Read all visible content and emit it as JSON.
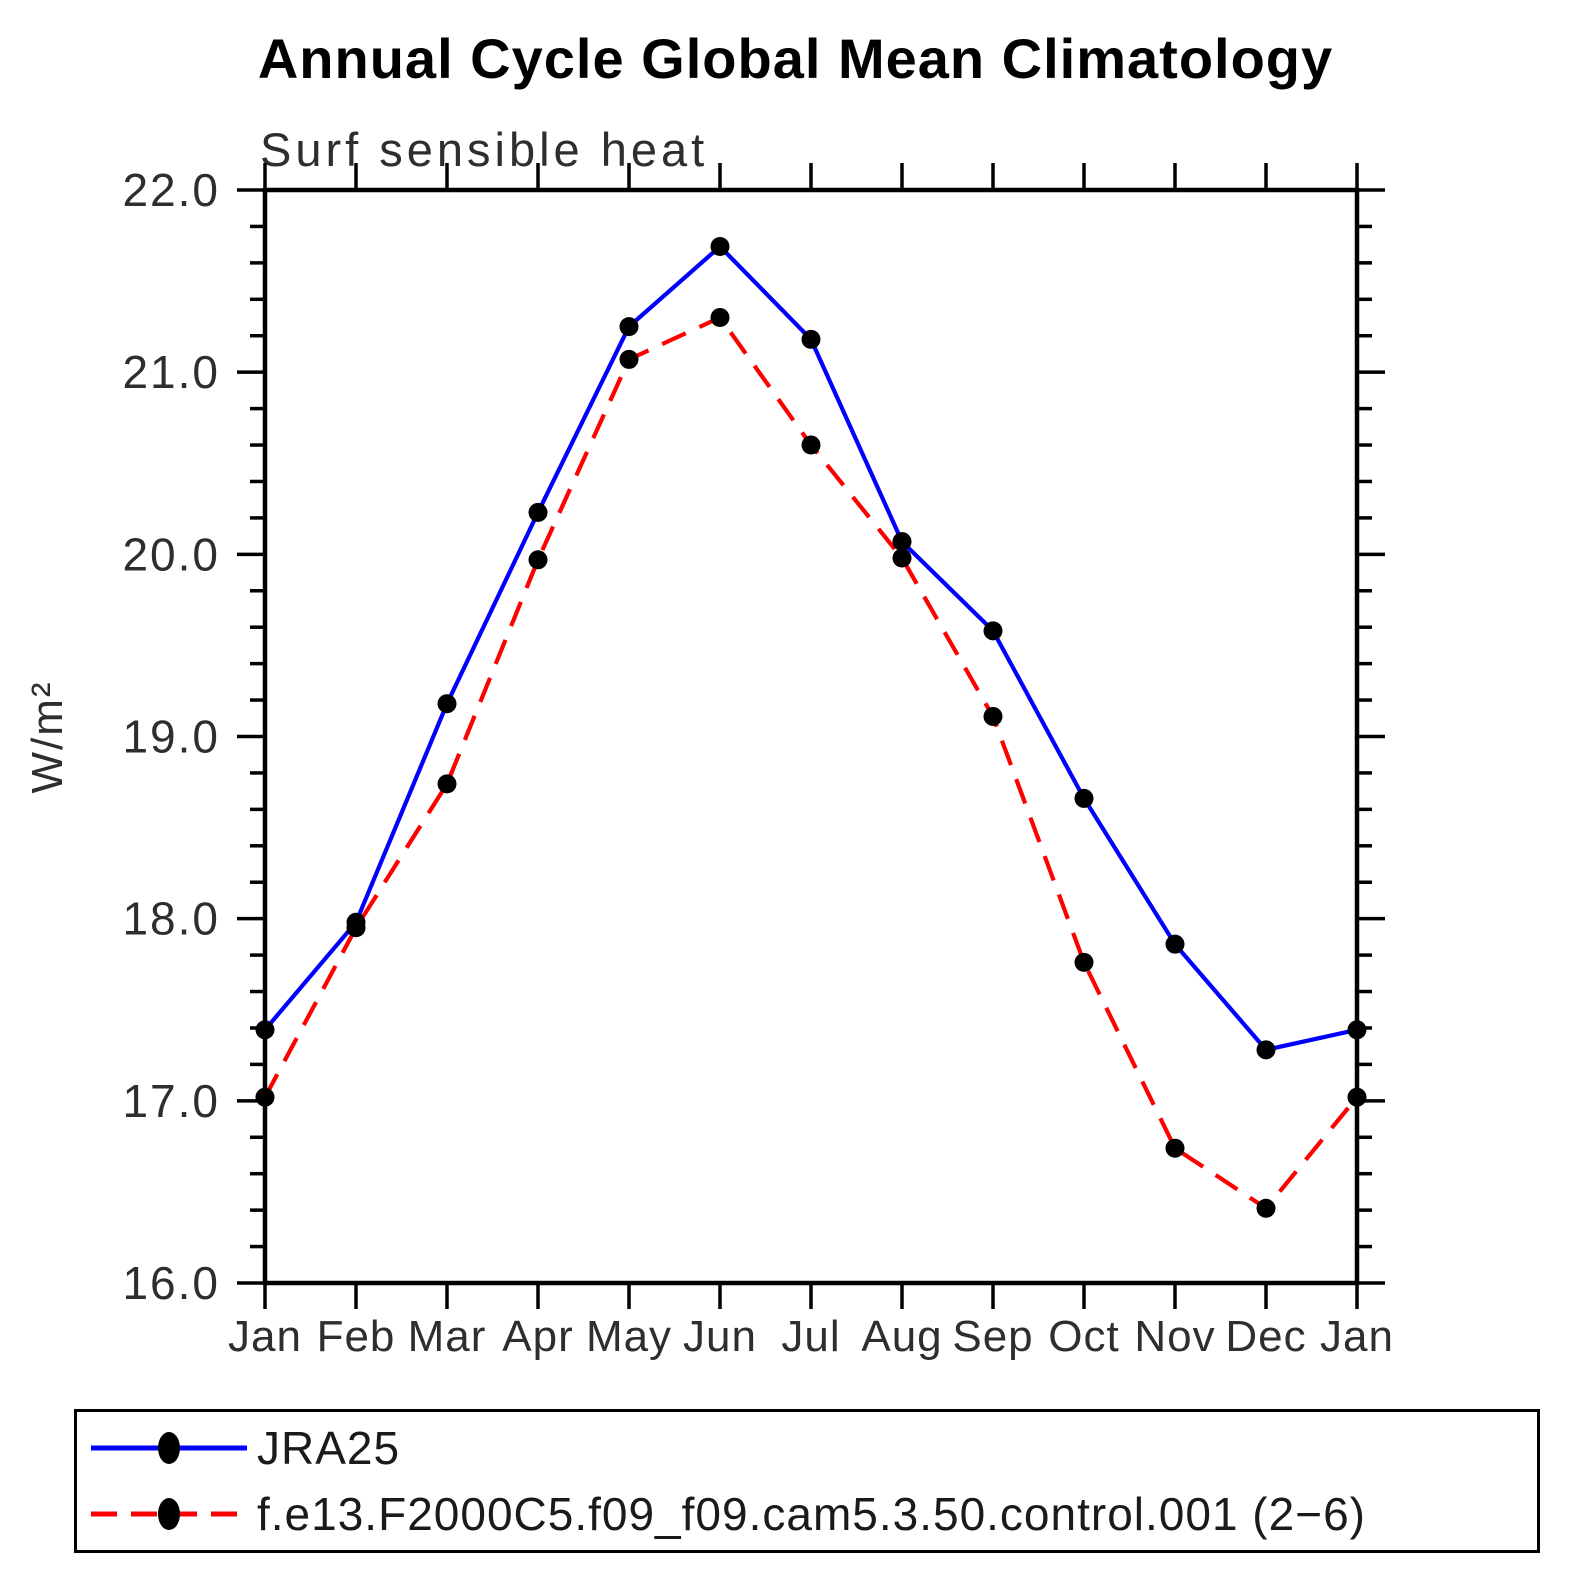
{
  "page_title": "Annual Cycle Global Mean Climatology",
  "chart_data": {
    "type": "line",
    "title": "Annual Cycle Global Mean Climatology",
    "subtitle": "Surf sensible heat",
    "xlabel": "",
    "ylabel": "W/m²",
    "categories": [
      "Jan",
      "Feb",
      "Mar",
      "Apr",
      "May",
      "Jun",
      "Jul",
      "Aug",
      "Sep",
      "Oct",
      "Nov",
      "Dec",
      "Jan"
    ],
    "ylim": [
      16.0,
      22.0
    ],
    "y_major_step": 1.0,
    "y_minor_step": 0.2,
    "y_tick_labels": [
      "16.0",
      "17.0",
      "18.0",
      "19.0",
      "20.0",
      "21.0",
      "22.0"
    ],
    "grid": false,
    "legend_position": "bottom-left-box",
    "axis_color": "#000000",
    "marker_color": "#000000",
    "series": [
      {
        "name": "JRA25",
        "color": "#0000ff",
        "line_style": "solid",
        "marker": "circle",
        "values": [
          17.39,
          17.98,
          19.18,
          20.23,
          21.25,
          21.69,
          21.18,
          20.07,
          19.58,
          18.66,
          17.86,
          17.28,
          17.39
        ]
      },
      {
        "name": "f.e13.F2000C5.f09_f09.cam5.3.50.control.001 (2−6)",
        "color": "#ff0000",
        "line_style": "dashed",
        "marker": "circle",
        "values": [
          17.02,
          17.95,
          18.74,
          19.97,
          21.07,
          21.3,
          20.6,
          19.98,
          19.11,
          17.76,
          16.74,
          16.41,
          17.02
        ]
      }
    ]
  }
}
